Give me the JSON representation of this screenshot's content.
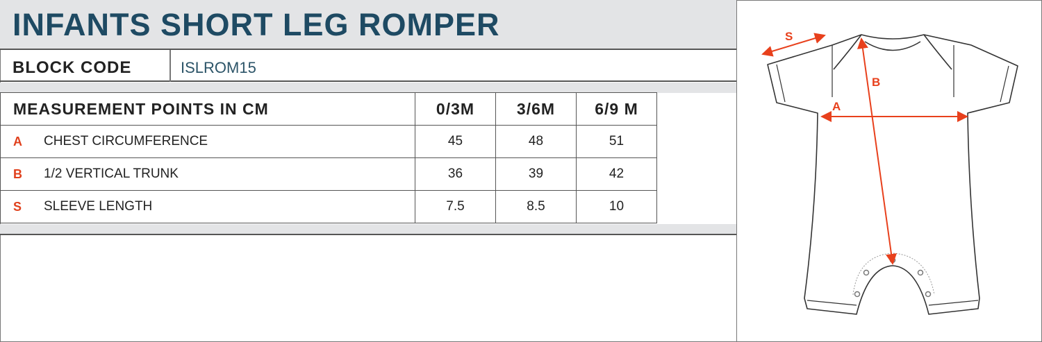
{
  "title": "INFANTS SHORT LEG ROMPER",
  "block_code": {
    "label": "BLOCK CODE",
    "value": "ISLROM15"
  },
  "table": {
    "header": "MEASUREMENT POINTS IN CM",
    "sizes": [
      "0/3M",
      "3/6M",
      "6/9 M"
    ],
    "rows": [
      {
        "letter": "A",
        "name": "CHEST CIRCUMFERENCE",
        "values": [
          "45",
          "48",
          "51"
        ]
      },
      {
        "letter": "B",
        "name": "1/2 VERTICAL TRUNK",
        "values": [
          "36",
          "39",
          "42"
        ]
      },
      {
        "letter": "S",
        "name": "SLEEVE LENGTH",
        "values": [
          "7.5",
          "8.5",
          "10"
        ]
      }
    ]
  },
  "diagram": {
    "labels": {
      "a": "A",
      "b": "B",
      "s": "S"
    },
    "arrow_color": "#e8401c"
  },
  "colors": {
    "title": "#1e4a63",
    "band": "#e3e4e6",
    "accent": "#e0401c"
  }
}
